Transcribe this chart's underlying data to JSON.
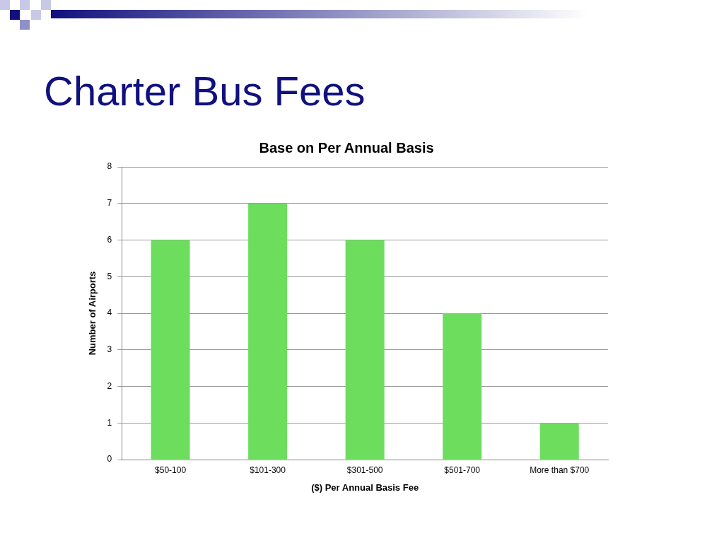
{
  "chart_data": {
    "type": "bar",
    "title": "Charter Bus Fees",
    "subtitle": "Base on Per Annual Basis",
    "xlabel": "($) Per Annual Basis Fee",
    "ylabel": "Number of Airports",
    "categories": [
      "$50-100",
      "$101-300",
      "$301-500",
      "$501-700",
      "More than $700"
    ],
    "values": [
      6,
      7,
      6,
      4,
      1
    ],
    "color": "#6ddd5e",
    "ylim": [
      0,
      8
    ],
    "yticks": [
      0,
      1,
      2,
      3,
      4,
      5,
      6,
      7,
      8
    ],
    "grid": "y",
    "legend": false
  }
}
